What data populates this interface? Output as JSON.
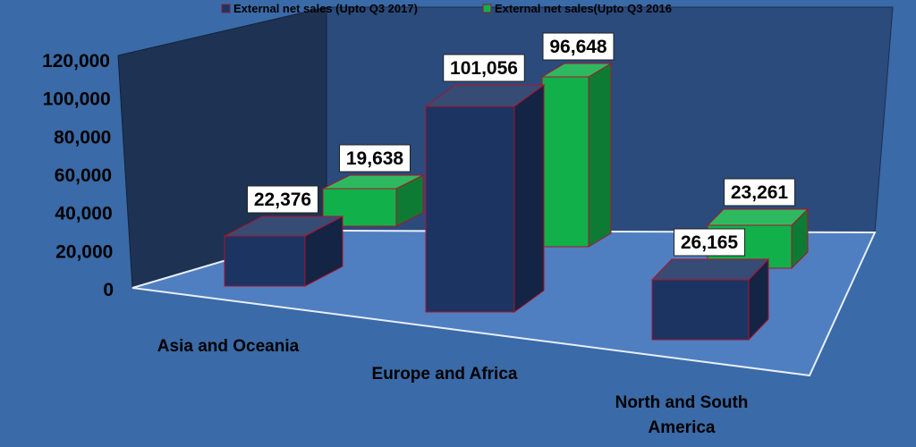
{
  "chart_data": {
    "type": "bar",
    "categories": [
      "Asia and Oceania",
      "Europe and Africa",
      "North and South America"
    ],
    "series": [
      {
        "name": "External net sales (Upto Q3 2017)",
        "values": [
          22376,
          101056,
          26165
        ],
        "color": "#1c3461"
      },
      {
        "name": "External net sales(Upto Q3 2016",
        "values": [
          19638,
          96648,
          23261
        ],
        "color": "#12b04a"
      }
    ],
    "data_labels": [
      [
        "22,376",
        "101,056",
        "26,165"
      ],
      [
        "19,638",
        "96,648",
        "23,261"
      ]
    ],
    "y_ticks": [
      "0",
      "20,000",
      "40,000",
      "60,000",
      "80,000",
      "100,000",
      "120,000"
    ],
    "ylim": [
      0,
      120000
    ],
    "legend_position": "top",
    "grid": false,
    "style": "3d-clustered-column"
  }
}
